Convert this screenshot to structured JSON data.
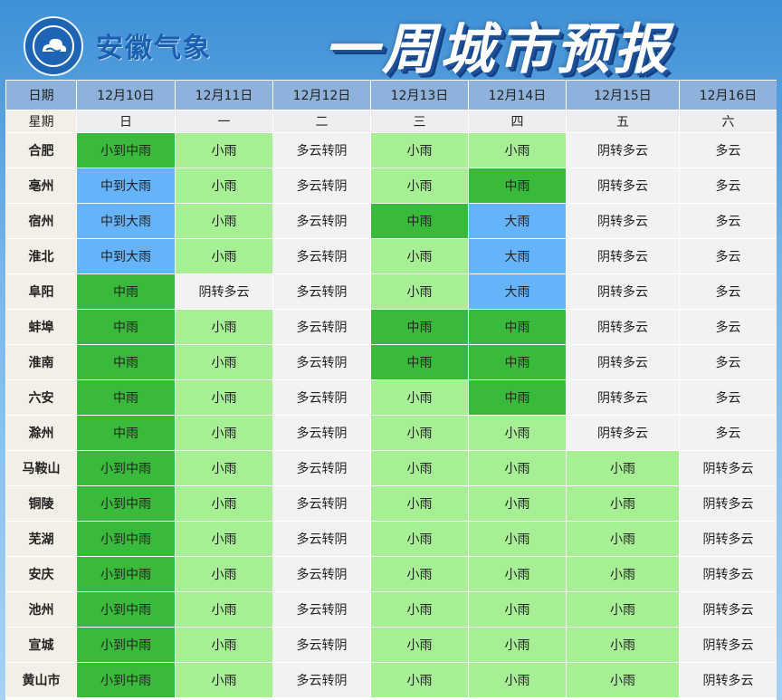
{
  "header": {
    "agency_name": "安徽气象",
    "page_title": "一周城市预报"
  },
  "colors": {
    "heavy_rain": "#3aba3a",
    "light_rain": "#a6ef94",
    "big_rain": "#65b4fb",
    "cloudy": "#f2f2f2",
    "header_row": "#8fb2dc"
  },
  "table": {
    "date_label": "日期",
    "weekday_label": "星期",
    "dates": [
      "12月10日",
      "12月11日",
      "12月12日",
      "12月13日",
      "12月14日",
      "12月15日",
      "12月16日"
    ],
    "weekdays": [
      "日",
      "一",
      "二",
      "三",
      "四",
      "五",
      "六"
    ],
    "rows": [
      {
        "city": "合肥",
        "forecast": [
          "小到中雨",
          "小雨",
          "多云转阴",
          "小雨",
          "小雨",
          "阴转多云",
          "多云"
        ]
      },
      {
        "city": "亳州",
        "forecast": [
          "中到大雨",
          "小雨",
          "多云转阴",
          "小雨",
          "中雨",
          "阴转多云",
          "多云"
        ]
      },
      {
        "city": "宿州",
        "forecast": [
          "中到大雨",
          "小雨",
          "多云转阴",
          "中雨",
          "大雨",
          "阴转多云",
          "多云"
        ]
      },
      {
        "city": "淮北",
        "forecast": [
          "中到大雨",
          "小雨",
          "多云转阴",
          "小雨",
          "大雨",
          "阴转多云",
          "多云"
        ]
      },
      {
        "city": "阜阳",
        "forecast": [
          "中雨",
          "阴转多云",
          "多云转阴",
          "小雨",
          "大雨",
          "阴转多云",
          "多云"
        ]
      },
      {
        "city": "蚌埠",
        "forecast": [
          "中雨",
          "小雨",
          "多云转阴",
          "中雨",
          "中雨",
          "阴转多云",
          "多云"
        ]
      },
      {
        "city": "淮南",
        "forecast": [
          "中雨",
          "小雨",
          "多云转阴",
          "中雨",
          "中雨",
          "阴转多云",
          "多云"
        ]
      },
      {
        "city": "六安",
        "forecast": [
          "中雨",
          "小雨",
          "多云转阴",
          "小雨",
          "中雨",
          "阴转多云",
          "多云"
        ]
      },
      {
        "city": "滁州",
        "forecast": [
          "中雨",
          "小雨",
          "多云转阴",
          "小雨",
          "小雨",
          "阴转多云",
          "多云"
        ]
      },
      {
        "city": "马鞍山",
        "forecast": [
          "小到中雨",
          "小雨",
          "多云转阴",
          "小雨",
          "小雨",
          "小雨",
          "阴转多云"
        ]
      },
      {
        "city": "铜陵",
        "forecast": [
          "小到中雨",
          "小雨",
          "多云转阴",
          "小雨",
          "小雨",
          "小雨",
          "阴转多云"
        ]
      },
      {
        "city": "芜湖",
        "forecast": [
          "小到中雨",
          "小雨",
          "多云转阴",
          "小雨",
          "小雨",
          "小雨",
          "阴转多云"
        ]
      },
      {
        "city": "安庆",
        "forecast": [
          "小到中雨",
          "小雨",
          "多云转阴",
          "小雨",
          "小雨",
          "小雨",
          "阴转多云"
        ]
      },
      {
        "city": "池州",
        "forecast": [
          "小到中雨",
          "小雨",
          "多云转阴",
          "小雨",
          "小雨",
          "小雨",
          "阴转多云"
        ]
      },
      {
        "city": "宣城",
        "forecast": [
          "小到中雨",
          "小雨",
          "多云转阴",
          "小雨",
          "小雨",
          "小雨",
          "阴转多云"
        ]
      },
      {
        "city": "黄山市",
        "forecast": [
          "小到中雨",
          "小雨",
          "多云转阴",
          "小雨",
          "小雨",
          "小雨",
          "阴转多云"
        ]
      }
    ]
  }
}
